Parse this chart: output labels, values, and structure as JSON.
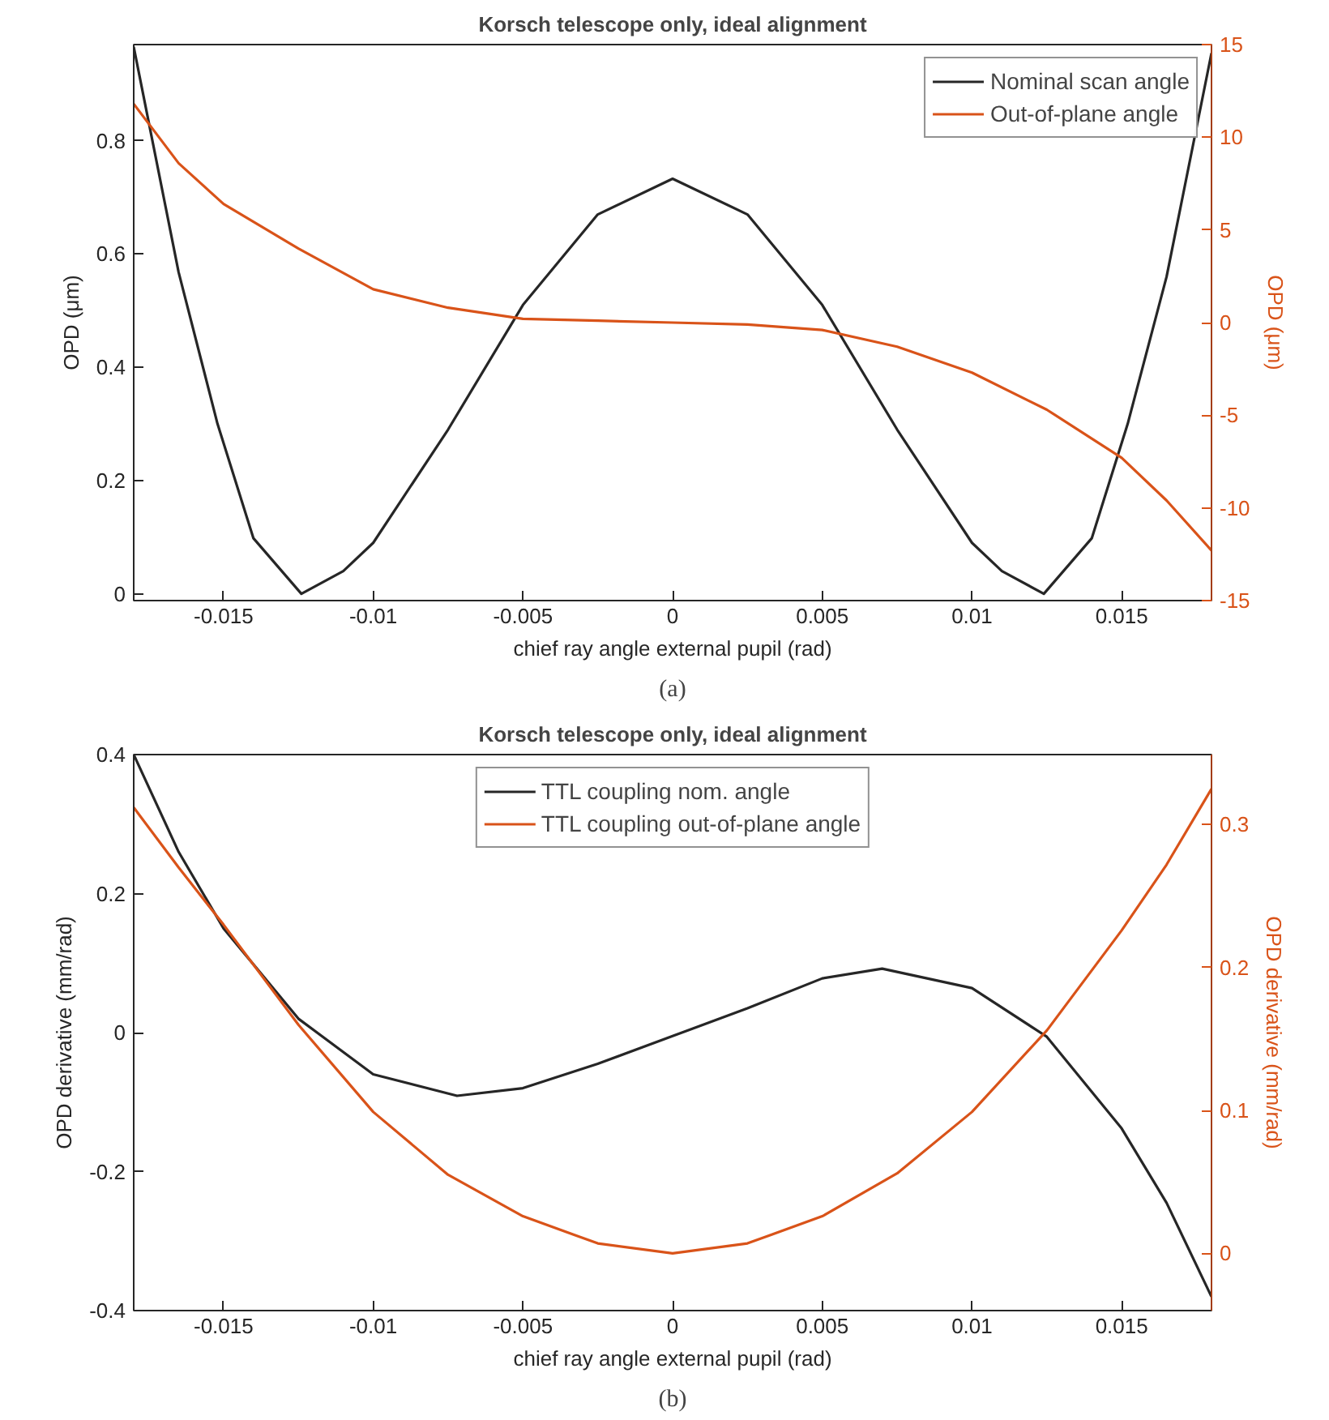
{
  "chart_data": [
    {
      "type": "line",
      "title": "Korsch telescope only, ideal alignment",
      "xlabel": "chief ray angle external pupil (rad)",
      "ylabel": "OPD (μm)",
      "y2label": "OPD (μm)",
      "annotations": [
        "(a)"
      ],
      "xlim": [
        -0.018,
        0.018
      ],
      "xticks": [
        -0.015,
        -0.01,
        -0.005,
        0,
        0.005,
        0.01,
        0.015
      ],
      "ylim": [
        -0.012,
        0.97
      ],
      "yticks": [
        0,
        0.2,
        0.4,
        0.6,
        0.8
      ],
      "y2lim": [
        -15,
        15
      ],
      "y2ticks": [
        -15,
        -10,
        -5,
        0,
        5,
        10,
        15
      ],
      "legend": "top right",
      "grid": false,
      "line_style": "solid",
      "series": [
        {
          "name": "Nominal scan angle",
          "color": "#262626",
          "x": [
            -0.018,
            -0.0165,
            -0.0152,
            -0.014,
            -0.0124,
            -0.011,
            -0.01,
            -0.0075,
            -0.005,
            -0.0025,
            0,
            0.0025,
            0.005,
            0.0075,
            0.01,
            0.011,
            0.0124,
            0.014,
            0.0152,
            0.0165,
            0.018
          ],
          "values": [
            0.966,
            0.568,
            0.3,
            0.098,
            0,
            0.04,
            0.09,
            0.29,
            0.51,
            0.67,
            0.733,
            0.67,
            0.51,
            0.29,
            0.09,
            0.04,
            0,
            0.098,
            0.3,
            0.56,
            0.955
          ]
        },
        {
          "name": "Out-of-plane angle",
          "color": "#d95319",
          "axis": "y2",
          "x": [
            -0.018,
            -0.0165,
            -0.015,
            -0.0125,
            -0.01,
            -0.0075,
            -0.005,
            -0.0025,
            0,
            0.0025,
            0.005,
            0.0075,
            0.01,
            0.0125,
            0.015,
            0.0165,
            0.018
          ],
          "values": [
            11.8,
            8.6,
            6.4,
            4.0,
            1.8,
            0.8,
            0.2,
            0.1,
            0,
            -0.1,
            -0.4,
            -1.3,
            -2.7,
            -4.7,
            -7.3,
            -9.6,
            -12.3
          ]
        }
      ]
    },
    {
      "type": "line",
      "title": "Korsch telescope only, ideal alignment",
      "xlabel": "chief ray angle external pupil (rad)",
      "ylabel": "OPD derivative (mm/rad)",
      "y2label": "OPD derivative (mm/rad)",
      "annotations": [
        "(b)"
      ],
      "xlim": [
        -0.018,
        0.018
      ],
      "xticks": [
        -0.015,
        -0.01,
        -0.005,
        0,
        0.005,
        0.01,
        0.015
      ],
      "ylim": [
        -0.4,
        0.4
      ],
      "yticks": [
        -0.4,
        -0.2,
        0,
        0.2,
        0.4
      ],
      "y2lim": [
        -0.04,
        0.349
      ],
      "y2ticks": [
        0,
        0.1,
        0.2,
        0.3
      ],
      "legend": "top",
      "grid": false,
      "line_style": "solid",
      "series": [
        {
          "name": "TTL coupling nom. angle",
          "color": "#262626",
          "x": [
            -0.018,
            -0.0165,
            -0.015,
            -0.0125,
            -0.01,
            -0.0072,
            -0.005,
            -0.0025,
            0,
            0.0025,
            0.005,
            0.007,
            0.01,
            0.0125,
            0.015,
            0.0165,
            0.018
          ],
          "values": [
            0.4,
            0.26,
            0.15,
            0.02,
            -0.06,
            -0.091,
            -0.08,
            -0.045,
            -0.005,
            0.035,
            0.078,
            0.092,
            0.064,
            -0.006,
            -0.138,
            -0.245,
            -0.38
          ]
        },
        {
          "name": "TTL coupling out-of-plane angle",
          "color": "#d95319",
          "axis": "y2",
          "x": [
            -0.018,
            -0.0165,
            -0.015,
            -0.0125,
            -0.01,
            -0.0075,
            -0.005,
            -0.0025,
            0,
            0.0025,
            0.005,
            0.0075,
            0.01,
            0.0125,
            0.015,
            0.0165,
            0.018
          ],
          "values": [
            0.312,
            0.27,
            0.23,
            0.16,
            0.099,
            0.055,
            0.026,
            0.007,
            0,
            0.007,
            0.026,
            0.056,
            0.099,
            0.156,
            0.226,
            0.272,
            0.325
          ]
        }
      ]
    }
  ]
}
